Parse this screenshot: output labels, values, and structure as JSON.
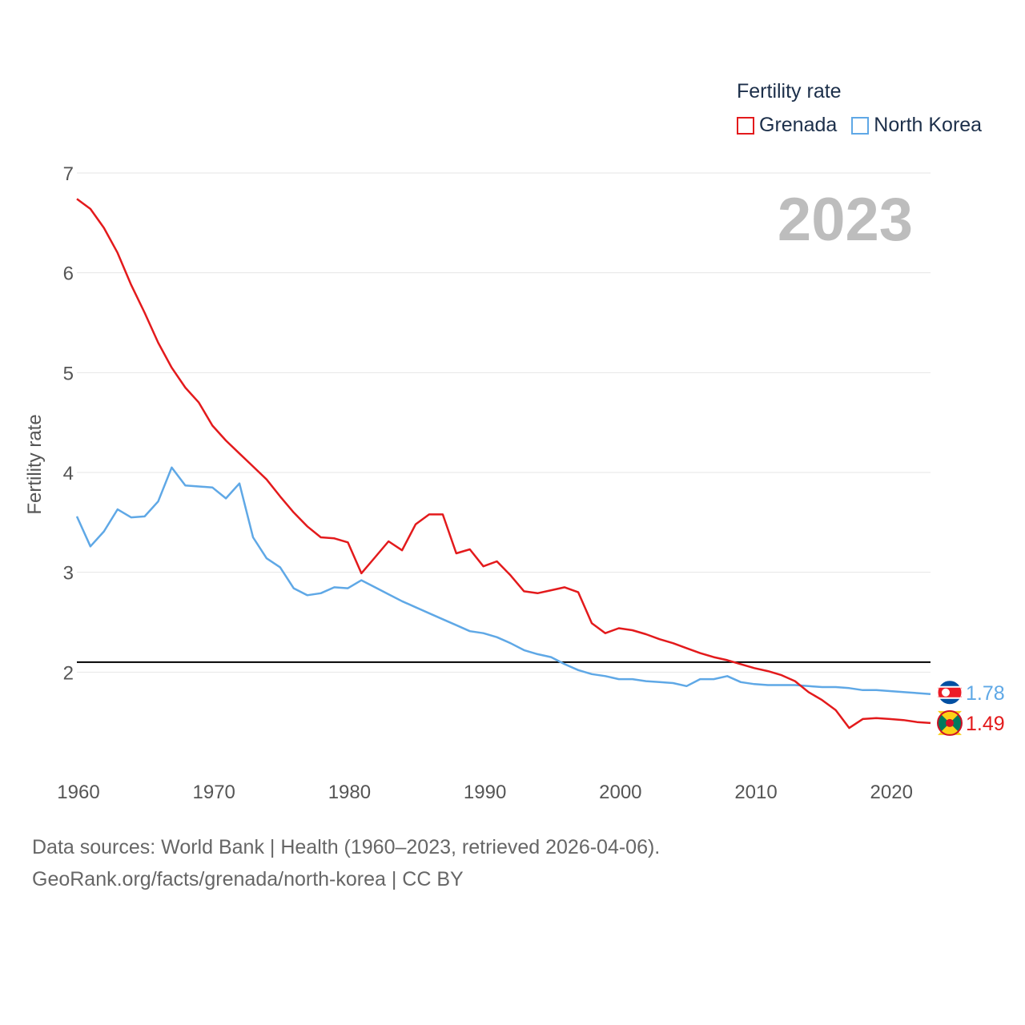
{
  "legend": {
    "title": "Fertility rate",
    "items": [
      {
        "label": "Grenada",
        "color": "#e31a1c"
      },
      {
        "label": "North Korea",
        "color": "#5fa8e6"
      }
    ]
  },
  "year_overlay": "2023",
  "footer": {
    "line1": "Data sources: World Bank | Health (1960–2023, retrieved 2026-04-06).",
    "line2": "GeoRank.org/facts/grenada/north-korea | CC BY"
  },
  "chart_data": {
    "type": "line",
    "title": "",
    "xlabel": "",
    "ylabel": "Fertility rate",
    "xlim": [
      1960,
      2023
    ],
    "ylim": [
      1,
      7
    ],
    "yticks": [
      2,
      3,
      4,
      5,
      6,
      7
    ],
    "xticks": [
      1960,
      1970,
      1980,
      1990,
      2000,
      2010,
      2020
    ],
    "reference_line": 2.1,
    "x": [
      1960,
      1961,
      1962,
      1963,
      1964,
      1965,
      1966,
      1967,
      1968,
      1969,
      1970,
      1971,
      1972,
      1973,
      1974,
      1975,
      1976,
      1977,
      1978,
      1979,
      1980,
      1981,
      1982,
      1983,
      1984,
      1985,
      1986,
      1987,
      1988,
      1989,
      1990,
      1991,
      1992,
      1993,
      1994,
      1995,
      1996,
      1997,
      1998,
      1999,
      2000,
      2001,
      2002,
      2003,
      2004,
      2005,
      2006,
      2007,
      2008,
      2009,
      2010,
      2011,
      2012,
      2013,
      2014,
      2015,
      2016,
      2017,
      2018,
      2019,
      2020,
      2021,
      2022,
      2023
    ],
    "series": [
      {
        "name": "Grenada",
        "color": "#e31a1c",
        "end_label": "1.49",
        "values": [
          6.74,
          6.64,
          6.45,
          6.2,
          5.88,
          5.6,
          5.3,
          5.05,
          4.85,
          4.7,
          4.47,
          4.32,
          4.19,
          4.06,
          3.93,
          3.76,
          3.6,
          3.46,
          3.35,
          3.34,
          3.3,
          2.99,
          3.15,
          3.31,
          3.22,
          3.48,
          3.58,
          3.58,
          3.19,
          3.23,
          3.06,
          3.11,
          2.97,
          2.81,
          2.79,
          2.82,
          2.85,
          2.8,
          2.49,
          2.39,
          2.44,
          2.42,
          2.38,
          2.33,
          2.29,
          2.24,
          2.19,
          2.15,
          2.12,
          2.08,
          2.04,
          2.01,
          1.97,
          1.91,
          1.8,
          1.72,
          1.62,
          1.44,
          1.53,
          1.54,
          1.53,
          1.52,
          1.5,
          1.49
        ]
      },
      {
        "name": "North Korea",
        "color": "#5fa8e6",
        "end_label": "1.78",
        "values": [
          3.56,
          3.26,
          3.41,
          3.63,
          3.55,
          3.56,
          3.71,
          4.05,
          3.87,
          3.86,
          3.85,
          3.74,
          3.89,
          3.35,
          3.14,
          3.05,
          2.84,
          2.77,
          2.79,
          2.85,
          2.84,
          2.92,
          2.85,
          2.78,
          2.71,
          2.65,
          2.59,
          2.53,
          2.47,
          2.41,
          2.39,
          2.35,
          2.29,
          2.22,
          2.18,
          2.15,
          2.08,
          2.02,
          1.98,
          1.96,
          1.93,
          1.93,
          1.91,
          1.9,
          1.89,
          1.86,
          1.93,
          1.93,
          1.96,
          1.9,
          1.88,
          1.87,
          1.87,
          1.87,
          1.86,
          1.85,
          1.85,
          1.84,
          1.82,
          1.82,
          1.81,
          1.8,
          1.79,
          1.78
        ]
      }
    ]
  }
}
